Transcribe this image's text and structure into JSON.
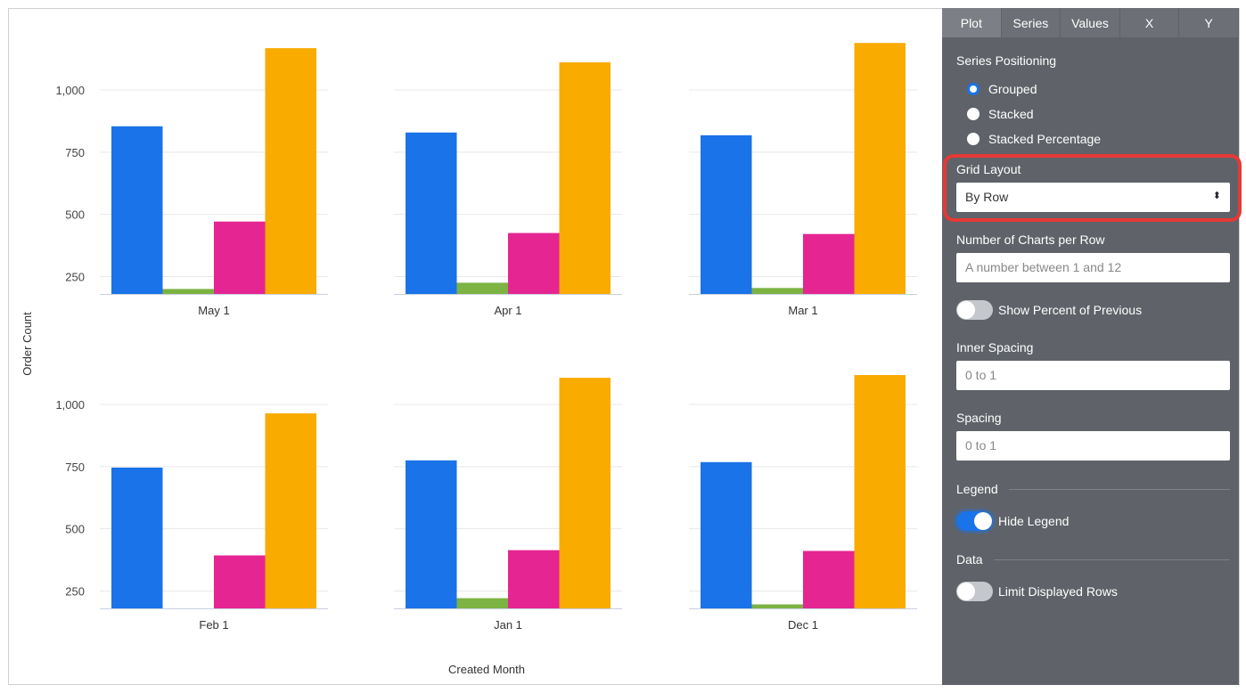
{
  "chart_data": {
    "type": "bar",
    "layout": "small-multiples grid, 2 rows x 3 columns, grouped bars",
    "ylabel": "Order Count",
    "xlabel": "Created Month",
    "ylim": [
      180,
      1200
    ],
    "yticks": [
      250,
      500,
      750,
      1000
    ],
    "ytick_labels": [
      "250",
      "500",
      "750",
      "1,000"
    ],
    "grid": true,
    "legend": "hidden",
    "series_colors": [
      "#1a73e8",
      "#7cb342",
      "#e52592",
      "#f9ab00"
    ],
    "panels": [
      {
        "label": "May 1",
        "values": [
          854,
          200,
          471,
          1168
        ]
      },
      {
        "label": "Apr 1",
        "values": [
          829,
          225,
          425,
          1111
        ]
      },
      {
        "label": "Mar 1",
        "values": [
          818,
          204,
          421,
          1189
        ]
      },
      {
        "label": "Feb 1",
        "values": [
          746,
          175,
          393,
          964
        ]
      },
      {
        "label": "Jan 1",
        "values": [
          775,
          221,
          414,
          1107
        ]
      },
      {
        "label": "Dec 1",
        "values": [
          768,
          196,
          411,
          1118
        ]
      }
    ]
  },
  "panel": {
    "tabs": [
      "Plot",
      "Series",
      "Values",
      "X",
      "Y"
    ],
    "active_tab": "Plot",
    "series_positioning": {
      "label": "Series Positioning",
      "options": [
        "Grouped",
        "Stacked",
        "Stacked Percentage"
      ],
      "selected": "Grouped"
    },
    "grid_layout": {
      "label": "Grid Layout",
      "value": "By Row",
      "arrow": "⬍"
    },
    "charts_per_row": {
      "label": "Number of Charts per Row",
      "placeholder": "A number between 1 and 12"
    },
    "show_percent": {
      "label": "Show Percent of Previous",
      "on": false
    },
    "inner_spacing": {
      "label": "Inner Spacing",
      "placeholder": "0 to 1"
    },
    "spacing": {
      "label": "Spacing",
      "placeholder": "0 to 1"
    },
    "legend_section": "Legend",
    "hide_legend": {
      "label": "Hide Legend",
      "on": true
    },
    "data_section": "Data",
    "limit_rows": {
      "label": "Limit Displayed Rows",
      "on": false
    },
    "highlight_color": "#e53935"
  }
}
